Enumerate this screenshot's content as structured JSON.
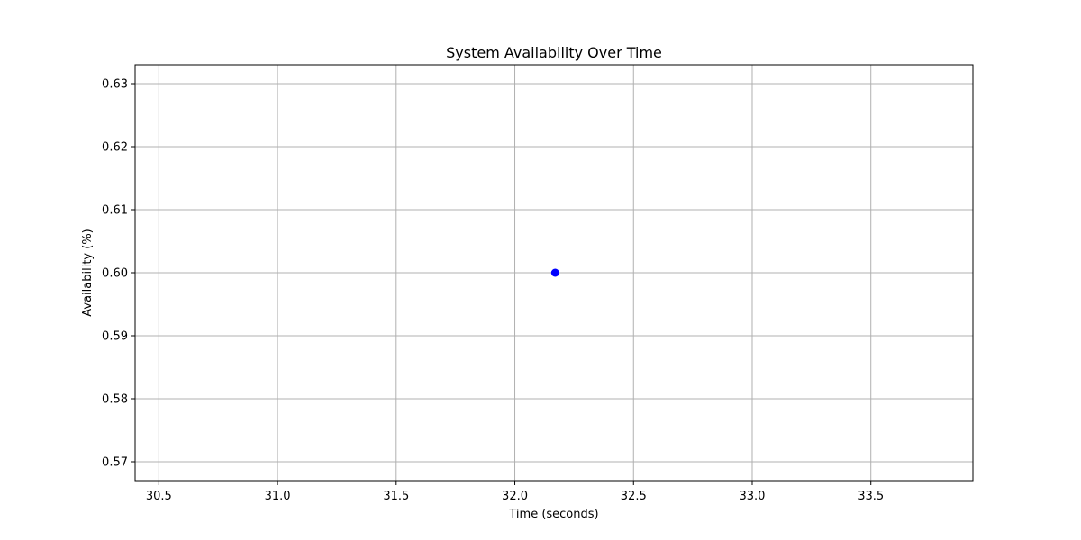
{
  "chart_data": {
    "type": "scatter",
    "title": "System Availability Over Time",
    "xlabel": "Time (seconds)",
    "ylabel": "Availability (%)",
    "xlim": [
      30.4,
      33.93
    ],
    "ylim": [
      0.567,
      0.633
    ],
    "x_ticks": [
      "30.5",
      "31.0",
      "31.5",
      "32.0",
      "32.5",
      "33.0",
      "33.5"
    ],
    "y_ticks": [
      "0.57",
      "0.58",
      "0.59",
      "0.60",
      "0.61",
      "0.62",
      "0.63"
    ],
    "grid": true,
    "marker_color": "#0000ff",
    "points": [
      {
        "x": 32.17,
        "y": 0.6
      }
    ]
  }
}
